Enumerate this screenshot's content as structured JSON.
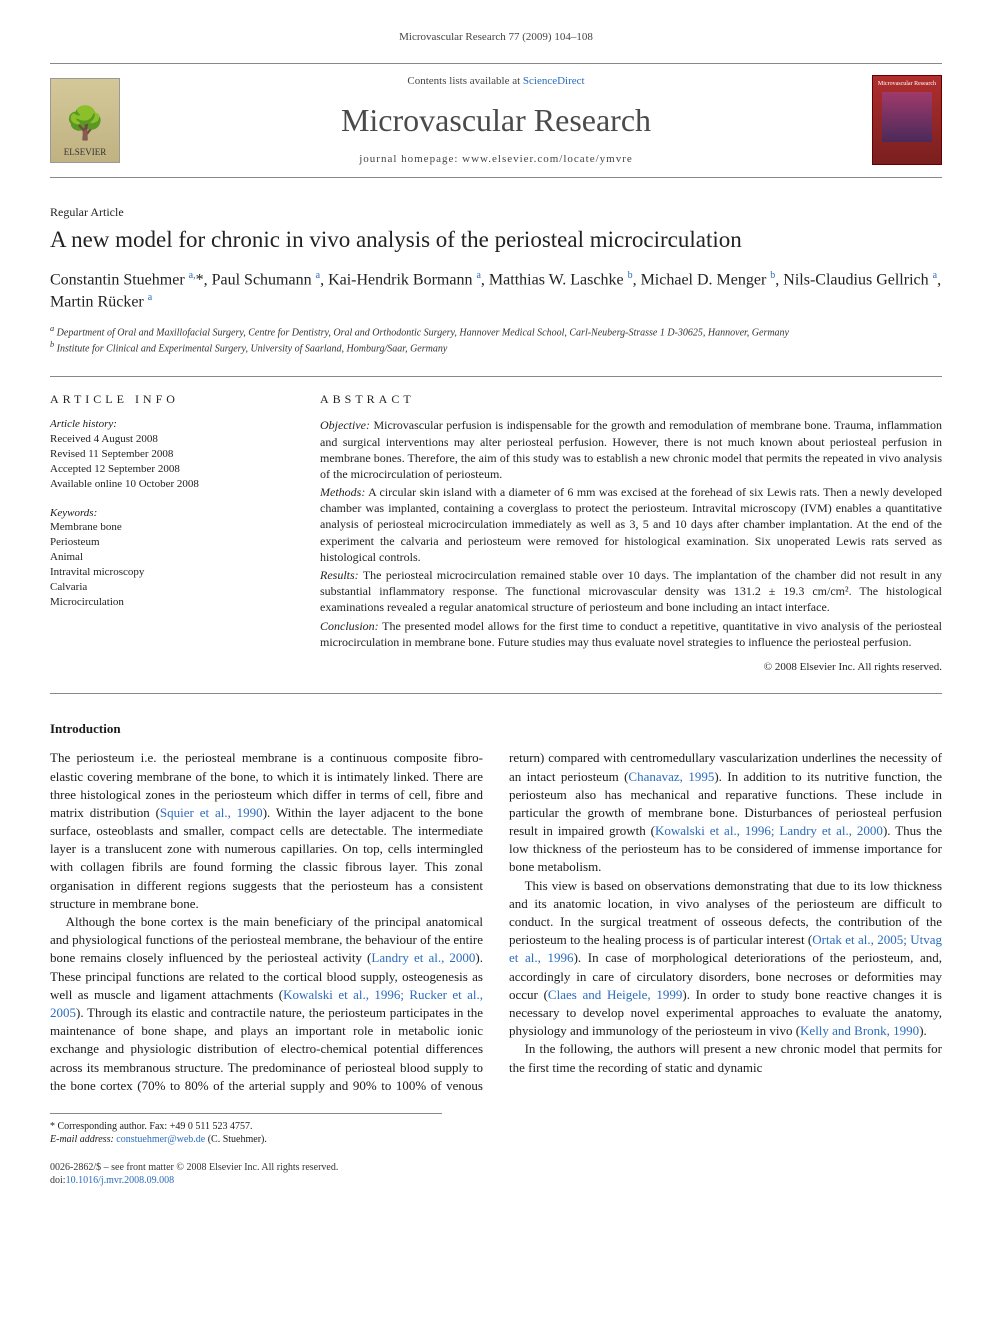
{
  "running_head": "Microvascular Research 77 (2009) 104–108",
  "masthead": {
    "publisher_name": "ELSEVIER",
    "contents_prefix": "Contents lists available at ",
    "contents_link": "ScienceDirect",
    "journal_name": "Microvascular Research",
    "homepage_prefix": "journal homepage: ",
    "homepage": "www.elsevier.com/locate/ymvre",
    "cover_label": "Microvascular Research"
  },
  "article_type": "Regular Article",
  "title": "A new model for chronic in vivo analysis of the periosteal microcirculation",
  "authors_html": "Constantin Stuehmer <sup>a,</sup>*, Paul Schumann <sup>a</sup>, Kai-Hendrik Bormann <sup>a</sup>, Matthias W. Laschke <sup>b</sup>, Michael D. Menger <sup>b</sup>, Nils-Claudius Gellrich <sup>a</sup>, Martin Rücker <sup>a</sup>",
  "affiliations": {
    "a": "Department of Oral and Maxillofacial Surgery, Centre for Dentistry, Oral and Orthodontic Surgery, Hannover Medical School, Carl-Neuberg-Strasse 1 D-30625, Hannover, Germany",
    "b": "Institute for Clinical and Experimental Surgery, University of Saarland, Homburg/Saar, Germany"
  },
  "info": {
    "rubric": "ARTICLE INFO",
    "history_label": "Article history:",
    "history": [
      "Received 4 August 2008",
      "Revised 11 September 2008",
      "Accepted 12 September 2008",
      "Available online 10 October 2008"
    ],
    "keywords_label": "Keywords:",
    "keywords": [
      "Membrane bone",
      "Periosteum",
      "Animal",
      "Intravital microscopy",
      "Calvaria",
      "Microcirculation"
    ]
  },
  "abstract": {
    "rubric": "ABSTRACT",
    "objective_label": "Objective:",
    "objective": "Microvascular perfusion is indispensable for the growth and remodulation of membrane bone. Trauma, inflammation and surgical interventions may alter periosteal perfusion. However, there is not much known about periosteal perfusion in membrane bones. Therefore, the aim of this study was to establish a new chronic model that permits the repeated in vivo analysis of the microcirculation of periosteum.",
    "methods_label": "Methods:",
    "methods": "A circular skin island with a diameter of 6 mm was excised at the forehead of six Lewis rats. Then a newly developed chamber was implanted, containing a coverglass to protect the periosteum. Intravital microscopy (IVM) enables a quantitative analysis of periosteal microcirculation immediately as well as 3, 5 and 10 days after chamber implantation. At the end of the experiment the calvaria and periosteum were removed for histological examination. Six unoperated Lewis rats served as histological controls.",
    "results_label": "Results:",
    "results": "The periosteal microcirculation remained stable over 10 days. The implantation of the chamber did not result in any substantial inflammatory response. The functional microvascular density was 131.2 ± 19.3 cm/cm². The histological examinations revealed a regular anatomical structure of periosteum and bone including an intact interface.",
    "conclusion_label": "Conclusion:",
    "conclusion": "The presented model allows for the first time to conduct a repetitive, quantitative in vivo analysis of the periosteal microcirculation in membrane bone. Future studies may thus evaluate novel strategies to influence the periosteal perfusion.",
    "copyright": "© 2008 Elsevier Inc. All rights reserved."
  },
  "introduction": {
    "title": "Introduction",
    "p1a": "The periosteum i.e. the periosteal membrane is a continuous composite fibro-elastic covering membrane of the bone, to which it is intimately linked. There are three histological zones in the periosteum which differ in terms of cell, fibre and matrix distribution (",
    "p1_ref1": "Squier et al., 1990",
    "p1b": "). Within the layer adjacent to the bone surface, osteoblasts and smaller, compact cells are detectable. The intermediate layer is a translucent zone with numerous capillaries. On top, cells intermingled with collagen fibrils are found forming the classic fibrous layer. This zonal organisation in different regions suggests that the periosteum has a consistent structure in membrane bone.",
    "p2a": "Although the bone cortex is the main beneficiary of the principal anatomical and physiological functions of the periosteal membrane, the behaviour of the entire bone remains closely influenced by the periosteal activity (",
    "p2_ref1": "Landry et al., 2000",
    "p2b": "). These principal functions are related to the cortical blood supply, osteogenesis as well as muscle and ligament attachments (",
    "p2_ref2": "Kowalski et al., 1996; Rucker et al., 2005",
    "p2c": "). Through its elastic and contractile nature, the periosteum participates in the maintenance of bone shape, and plays an important role in metabolic ionic exchange and physiologic distribution of electro-",
    "p2d": "chemical potential differences across its membranous structure. The predominance of periosteal blood supply to the bone cortex (70% to 80% of the arterial supply and 90% to 100% of venous return) compared with centromedullary vascularization underlines the necessity of an intact periosteum (",
    "p2_ref3": "Chanavaz, 1995",
    "p2e": "). In addition to its nutritive function, the periosteum also has mechanical and reparative functions. These include in particular the growth of membrane bone. Disturbances of periosteal perfusion result in impaired growth (",
    "p2_ref4": "Kowalski et al., 1996; Landry et al., 2000",
    "p2f": "). Thus the low thickness of the periosteum has to be considered of immense importance for bone metabolism.",
    "p3a": "This view is based on observations demonstrating that due to its low thickness and its anatomic location, in vivo analyses of the periosteum are difficult to conduct. In the surgical treatment of osseous defects, the contribution of the periosteum to the healing process is of particular interest (",
    "p3_ref1": "Ortak et al., 2005; Utvag et al., 1996",
    "p3b": "). In case of morphological deteriorations of the periosteum, and, accordingly in care of circulatory disorders, bone necroses or deformities may occur (",
    "p3_ref2": "Claes and Heigele, 1999",
    "p3c": "). In order to study bone reactive changes it is necessary to develop novel experimental approaches to evaluate the anatomy, physiology and immunology of the periosteum in vivo (",
    "p3_ref3": "Kelly and Bronk, 1990",
    "p3d": ").",
    "p4": "In the following, the authors will present a new chronic model that permits for the first time the recording of static and dynamic"
  },
  "footnotes": {
    "corr_label": "* Corresponding author. Fax: +49 0 511 523 4757.",
    "email_label": "E-mail address:",
    "email": "constuehmer@web.de",
    "email_name": "(C. Stuehmer)."
  },
  "footer_copyright": {
    "line1": "0026-2862/$ – see front matter © 2008 Elsevier Inc. All rights reserved.",
    "doi_prefix": "doi:",
    "doi": "10.1016/j.mvr.2008.09.008"
  }
}
